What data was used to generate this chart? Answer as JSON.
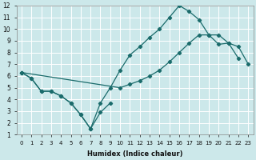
{
  "xlabel": "Humidex (Indice chaleur)",
  "background_color": "#cce8ea",
  "grid_color": "#ffffff",
  "line_color": "#1a6b6b",
  "xlim": [
    -0.5,
    23.5
  ],
  "ylim": [
    1,
    12
  ],
  "xticks": [
    0,
    1,
    2,
    3,
    4,
    5,
    6,
    7,
    8,
    9,
    10,
    11,
    12,
    13,
    14,
    15,
    16,
    17,
    18,
    19,
    20,
    21,
    22,
    23
  ],
  "yticks": [
    1,
    2,
    3,
    4,
    5,
    6,
    7,
    8,
    9,
    10,
    11,
    12
  ],
  "line1_x": [
    0,
    1,
    2,
    3,
    4,
    5,
    6,
    7,
    8,
    9
  ],
  "line1_y": [
    6.3,
    5.8,
    4.7,
    4.7,
    4.3,
    3.7,
    2.7,
    1.5,
    2.9,
    3.7
  ],
  "line2_x": [
    0,
    1,
    2,
    3,
    4,
    5,
    6,
    7,
    8,
    9,
    10,
    11,
    12,
    13,
    14,
    15,
    16,
    17,
    18,
    19,
    20,
    21,
    22
  ],
  "line2_y": [
    6.3,
    5.8,
    4.7,
    4.7,
    4.3,
    3.7,
    2.7,
    1.5,
    3.7,
    5.0,
    6.5,
    7.8,
    8.5,
    9.3,
    10.0,
    11.0,
    12.0,
    11.5,
    10.8,
    9.5,
    8.7,
    8.8,
    7.5
  ],
  "line3_x": [
    0,
    10,
    11,
    12,
    13,
    14,
    15,
    16,
    17,
    18,
    19,
    20,
    21,
    22,
    23
  ],
  "line3_y": [
    6.3,
    5.0,
    5.3,
    5.6,
    6.0,
    6.5,
    7.2,
    8.0,
    8.8,
    9.5,
    9.5,
    9.5,
    8.8,
    8.5,
    7.0
  ]
}
